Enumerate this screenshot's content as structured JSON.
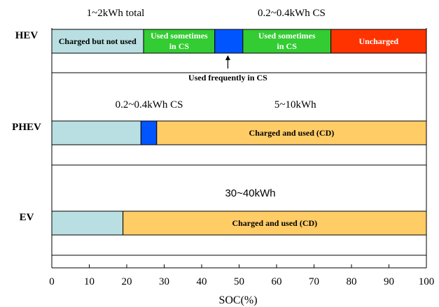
{
  "chart_data": {
    "type": "bar",
    "orientation": "horizontal-stacked",
    "xlabel": "SOC(%)",
    "xlim": [
      0,
      100
    ],
    "xticks": [
      "0",
      "10",
      "20",
      "30",
      "40",
      "50",
      "60",
      "70",
      "80",
      "90",
      "100"
    ],
    "grid": false,
    "rows": [
      {
        "label": "HEV",
        "segments": [
          {
            "start": 0,
            "end": 24.5,
            "color": "#b9dfe2",
            "label": ""
          },
          {
            "start": 24.5,
            "end": 43.5,
            "color": "#33cc33",
            "label": "Used sometimes in CS"
          },
          {
            "start": 43.5,
            "end": 51,
            "color": "#0055ff",
            "label": ""
          },
          {
            "start": 51,
            "end": 74.5,
            "color": "#33cc33",
            "label": "Used sometimes in CS"
          },
          {
            "start": 74.5,
            "end": 100,
            "color": "#ff3300",
            "label": "Uncharged"
          }
        ]
      },
      {
        "label": "PHEV",
        "segments": [
          {
            "start": 0,
            "end": 23.8,
            "color": "#b9dfe2",
            "label": ""
          },
          {
            "start": 23.8,
            "end": 28,
            "color": "#0055ff",
            "label": ""
          },
          {
            "start": 28,
            "end": 100,
            "color": "#ffcc66",
            "label": "Charged and used (CD)"
          }
        ]
      },
      {
        "label": "EV",
        "segments": [
          {
            "start": 0,
            "end": 19,
            "color": "#b9dfe2",
            "label": ""
          },
          {
            "start": 19,
            "end": 100,
            "color": "#ffcc66",
            "label": "Charged and used (CD)"
          }
        ]
      }
    ],
    "annotations": [
      {
        "text": "1~2kWh total",
        "row": 0,
        "x": 17
      },
      {
        "text": "0.2~0.4kWh CS",
        "row": 0,
        "x": 64
      },
      {
        "text": "Charged but not used",
        "row": 0,
        "x": 12.2,
        "inside": true
      },
      {
        "text": "Used frequently in CS",
        "row": 0,
        "x": 47,
        "arrow_to": 47
      },
      {
        "text": "0.2~0.4kWh CS",
        "row": 1,
        "x": 26
      },
      {
        "text": "5~10kWh",
        "row": 1,
        "x": 65
      },
      {
        "text": "30~40kWh",
        "row": 2,
        "x": 53
      }
    ]
  }
}
